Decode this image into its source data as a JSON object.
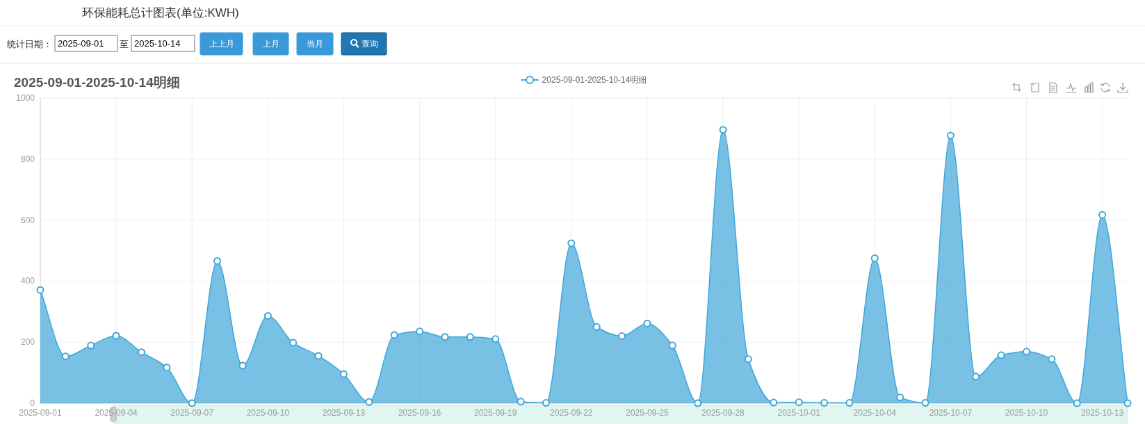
{
  "chart_data": {
    "type": "area",
    "title": "2025-09-01-2025-10-14明细",
    "annotations": [
      "环保能耗总计图表(单位:KWH)",
      "统计日期：",
      "2025-09-01",
      "至",
      "2025-10-14",
      "上上月",
      "上月",
      "当月",
      "查询"
    ],
    "categories": [
      "2025-09-01",
      null,
      null,
      "2025-09-04",
      null,
      null,
      "2025-09-07",
      null,
      null,
      "2025-09-10",
      null,
      null,
      "2025-09-13",
      null,
      null,
      "2025-09-16",
      null,
      null,
      "2025-09-19",
      null,
      null,
      "2025-09-22",
      null,
      null,
      "2025-09-25",
      null,
      null,
      "2025-09-28",
      null,
      null,
      "2025-10-01",
      null,
      null,
      "2025-10-04",
      null,
      null,
      "2025-10-07",
      null,
      null,
      "2025-10-10",
      null,
      null,
      "2025-10-13",
      null
    ],
    "series": [
      {
        "name": "2025-09-01-2025-10-14明细",
        "color": "#3ea6d8",
        "values": [
          371,
          153,
          189,
          221,
          167,
          117,
          0,
          466,
          123,
          286,
          198,
          155,
          95,
          4,
          223,
          235,
          217,
          217,
          210,
          5,
          1,
          524,
          250,
          220,
          261,
          189,
          0,
          896,
          144,
          2,
          3,
          1,
          1,
          475,
          19,
          1,
          877,
          87,
          157,
          169,
          144,
          0,
          617,
          0
        ]
      }
    ],
    "ylim": [
      0,
      1000
    ],
    "yticks": [
      0,
      200,
      400,
      600,
      800,
      1000
    ],
    "grid": true,
    "legend": "top",
    "marker": "circle"
  }
}
